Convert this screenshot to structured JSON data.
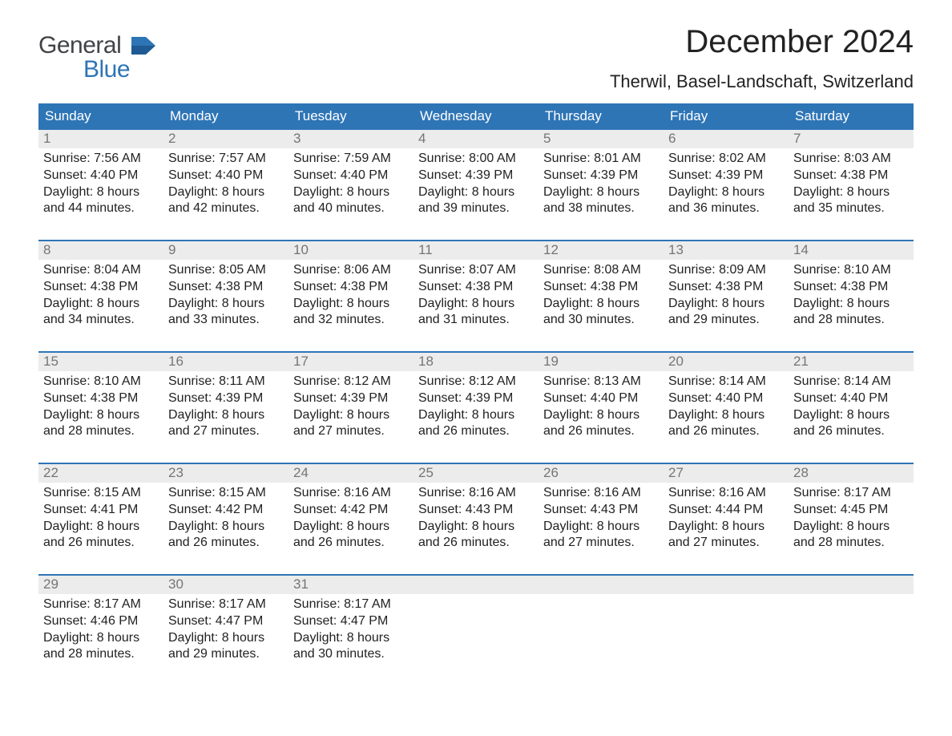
{
  "brand": {
    "word1": "General",
    "word2": "Blue",
    "flag_color": "#2e75b6",
    "text1_color": "#414348",
    "text2_color": "#2e75b6"
  },
  "title": "December 2024",
  "location": "Therwil, Basel-Landschaft, Switzerland",
  "header_row_bg": "#2e75b6",
  "header_row_text": "#ffffff",
  "week_divider_color": "#2e75b6",
  "daynum_bg": "#ececec",
  "daynum_color": "#757575",
  "body_text_color": "#222222",
  "page_bg": "#ffffff",
  "title_fontsize": 40,
  "location_fontsize": 22,
  "header_fontsize": 17,
  "body_fontsize": 16,
  "day_names": [
    "Sunday",
    "Monday",
    "Tuesday",
    "Wednesday",
    "Thursday",
    "Friday",
    "Saturday"
  ],
  "weeks": [
    [
      {
        "n": "1",
        "sr": "Sunrise: 7:56 AM",
        "ss": "Sunset: 4:40 PM",
        "d1": "Daylight: 8 hours",
        "d2": "and 44 minutes."
      },
      {
        "n": "2",
        "sr": "Sunrise: 7:57 AM",
        "ss": "Sunset: 4:40 PM",
        "d1": "Daylight: 8 hours",
        "d2": "and 42 minutes."
      },
      {
        "n": "3",
        "sr": "Sunrise: 7:59 AM",
        "ss": "Sunset: 4:40 PM",
        "d1": "Daylight: 8 hours",
        "d2": "and 40 minutes."
      },
      {
        "n": "4",
        "sr": "Sunrise: 8:00 AM",
        "ss": "Sunset: 4:39 PM",
        "d1": "Daylight: 8 hours",
        "d2": "and 39 minutes."
      },
      {
        "n": "5",
        "sr": "Sunrise: 8:01 AM",
        "ss": "Sunset: 4:39 PM",
        "d1": "Daylight: 8 hours",
        "d2": "and 38 minutes."
      },
      {
        "n": "6",
        "sr": "Sunrise: 8:02 AM",
        "ss": "Sunset: 4:39 PM",
        "d1": "Daylight: 8 hours",
        "d2": "and 36 minutes."
      },
      {
        "n": "7",
        "sr": "Sunrise: 8:03 AM",
        "ss": "Sunset: 4:38 PM",
        "d1": "Daylight: 8 hours",
        "d2": "and 35 minutes."
      }
    ],
    [
      {
        "n": "8",
        "sr": "Sunrise: 8:04 AM",
        "ss": "Sunset: 4:38 PM",
        "d1": "Daylight: 8 hours",
        "d2": "and 34 minutes."
      },
      {
        "n": "9",
        "sr": "Sunrise: 8:05 AM",
        "ss": "Sunset: 4:38 PM",
        "d1": "Daylight: 8 hours",
        "d2": "and 33 minutes."
      },
      {
        "n": "10",
        "sr": "Sunrise: 8:06 AM",
        "ss": "Sunset: 4:38 PM",
        "d1": "Daylight: 8 hours",
        "d2": "and 32 minutes."
      },
      {
        "n": "11",
        "sr": "Sunrise: 8:07 AM",
        "ss": "Sunset: 4:38 PM",
        "d1": "Daylight: 8 hours",
        "d2": "and 31 minutes."
      },
      {
        "n": "12",
        "sr": "Sunrise: 8:08 AM",
        "ss": "Sunset: 4:38 PM",
        "d1": "Daylight: 8 hours",
        "d2": "and 30 minutes."
      },
      {
        "n": "13",
        "sr": "Sunrise: 8:09 AM",
        "ss": "Sunset: 4:38 PM",
        "d1": "Daylight: 8 hours",
        "d2": "and 29 minutes."
      },
      {
        "n": "14",
        "sr": "Sunrise: 8:10 AM",
        "ss": "Sunset: 4:38 PM",
        "d1": "Daylight: 8 hours",
        "d2": "and 28 minutes."
      }
    ],
    [
      {
        "n": "15",
        "sr": "Sunrise: 8:10 AM",
        "ss": "Sunset: 4:38 PM",
        "d1": "Daylight: 8 hours",
        "d2": "and 28 minutes."
      },
      {
        "n": "16",
        "sr": "Sunrise: 8:11 AM",
        "ss": "Sunset: 4:39 PM",
        "d1": "Daylight: 8 hours",
        "d2": "and 27 minutes."
      },
      {
        "n": "17",
        "sr": "Sunrise: 8:12 AM",
        "ss": "Sunset: 4:39 PM",
        "d1": "Daylight: 8 hours",
        "d2": "and 27 minutes."
      },
      {
        "n": "18",
        "sr": "Sunrise: 8:12 AM",
        "ss": "Sunset: 4:39 PM",
        "d1": "Daylight: 8 hours",
        "d2": "and 26 minutes."
      },
      {
        "n": "19",
        "sr": "Sunrise: 8:13 AM",
        "ss": "Sunset: 4:40 PM",
        "d1": "Daylight: 8 hours",
        "d2": "and 26 minutes."
      },
      {
        "n": "20",
        "sr": "Sunrise: 8:14 AM",
        "ss": "Sunset: 4:40 PM",
        "d1": "Daylight: 8 hours",
        "d2": "and 26 minutes."
      },
      {
        "n": "21",
        "sr": "Sunrise: 8:14 AM",
        "ss": "Sunset: 4:40 PM",
        "d1": "Daylight: 8 hours",
        "d2": "and 26 minutes."
      }
    ],
    [
      {
        "n": "22",
        "sr": "Sunrise: 8:15 AM",
        "ss": "Sunset: 4:41 PM",
        "d1": "Daylight: 8 hours",
        "d2": "and 26 minutes."
      },
      {
        "n": "23",
        "sr": "Sunrise: 8:15 AM",
        "ss": "Sunset: 4:42 PM",
        "d1": "Daylight: 8 hours",
        "d2": "and 26 minutes."
      },
      {
        "n": "24",
        "sr": "Sunrise: 8:16 AM",
        "ss": "Sunset: 4:42 PM",
        "d1": "Daylight: 8 hours",
        "d2": "and 26 minutes."
      },
      {
        "n": "25",
        "sr": "Sunrise: 8:16 AM",
        "ss": "Sunset: 4:43 PM",
        "d1": "Daylight: 8 hours",
        "d2": "and 26 minutes."
      },
      {
        "n": "26",
        "sr": "Sunrise: 8:16 AM",
        "ss": "Sunset: 4:43 PM",
        "d1": "Daylight: 8 hours",
        "d2": "and 27 minutes."
      },
      {
        "n": "27",
        "sr": "Sunrise: 8:16 AM",
        "ss": "Sunset: 4:44 PM",
        "d1": "Daylight: 8 hours",
        "d2": "and 27 minutes."
      },
      {
        "n": "28",
        "sr": "Sunrise: 8:17 AM",
        "ss": "Sunset: 4:45 PM",
        "d1": "Daylight: 8 hours",
        "d2": "and 28 minutes."
      }
    ],
    [
      {
        "n": "29",
        "sr": "Sunrise: 8:17 AM",
        "ss": "Sunset: 4:46 PM",
        "d1": "Daylight: 8 hours",
        "d2": "and 28 minutes."
      },
      {
        "n": "30",
        "sr": "Sunrise: 8:17 AM",
        "ss": "Sunset: 4:47 PM",
        "d1": "Daylight: 8 hours",
        "d2": "and 29 minutes."
      },
      {
        "n": "31",
        "sr": "Sunrise: 8:17 AM",
        "ss": "Sunset: 4:47 PM",
        "d1": "Daylight: 8 hours",
        "d2": "and 30 minutes."
      },
      {
        "empty": true
      },
      {
        "empty": true
      },
      {
        "empty": true
      },
      {
        "empty": true
      }
    ]
  ]
}
